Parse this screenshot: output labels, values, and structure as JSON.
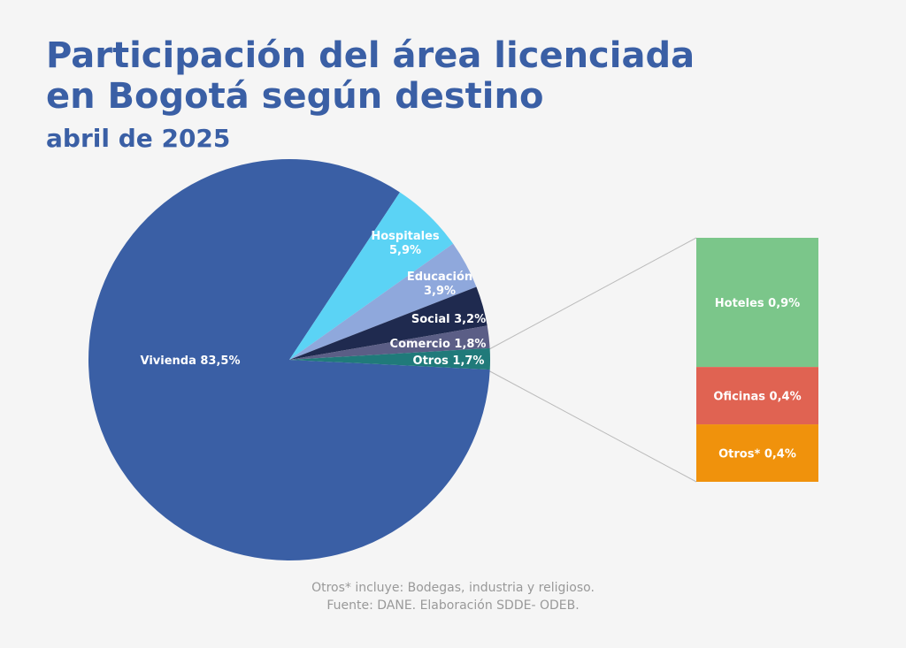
{
  "chart_data": [
    {
      "type": "pie",
      "title": [
        "Participación del área licenciada",
        "en Bogotá según destino"
      ],
      "subtitle": "abril de 2025",
      "notes": [
        "Otros* incluye: Bodegas, industria y religioso.",
        "Fuente: DANE. Elaboración SDDE- ODEB."
      ],
      "categories": [
        "Vivienda",
        "Hospitales",
        "Educación",
        "Social",
        "Comercio",
        "Otros"
      ],
      "values": [
        83.5,
        5.9,
        3.9,
        3.2,
        1.8,
        1.7
      ],
      "value_labels": [
        "83,5%",
        "5,9%",
        "3,9%",
        "3,2%",
        "1,8%",
        "1,7%"
      ],
      "colors": [
        "#3a5fa5",
        "#5bd3f5",
        "#8fa8dc",
        "#1f2a4f",
        "#5b5e86",
        "#207a7a"
      ]
    },
    {
      "type": "bar",
      "categories": [
        "Hoteles",
        "Oficinas",
        "Otros*"
      ],
      "values": [
        0.9,
        0.4,
        0.4
      ],
      "value_labels": [
        "0,9%",
        "0,4%",
        "0,4%"
      ],
      "colors": [
        "#7bc68a",
        "#e06352",
        "#f0920c"
      ]
    }
  ]
}
